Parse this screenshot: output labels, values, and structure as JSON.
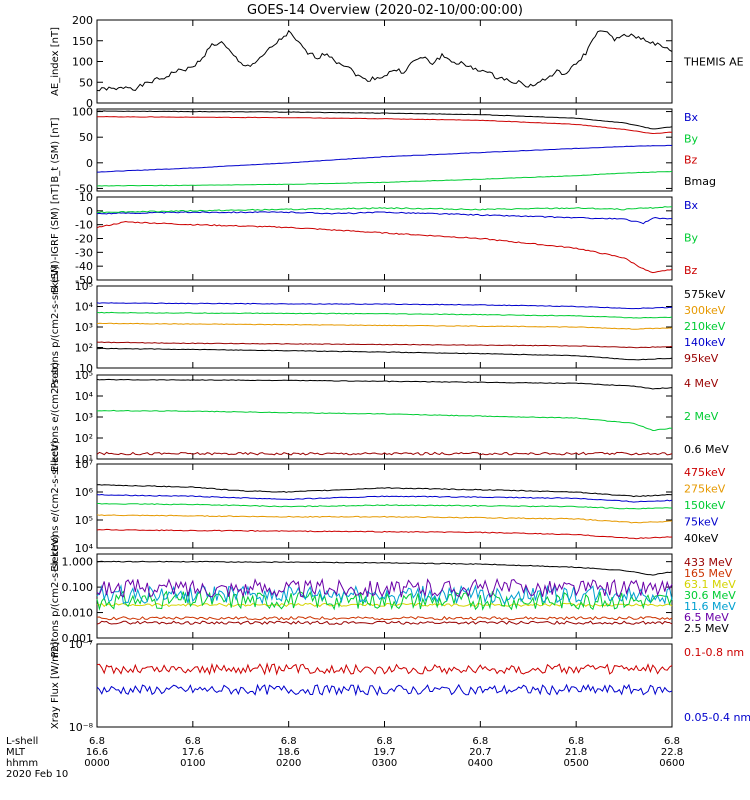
{
  "title": "GOES-14 Overview (2020-02-10/00:00:00)",
  "footer": {
    "row_labels": [
      "L-shell",
      "MLT",
      "hhmm",
      "2020 Feb 10"
    ],
    "lshell": [
      "6.8",
      "6.8",
      "6.8",
      "6.8",
      "6.8",
      "6.8",
      "6.8"
    ],
    "mlt": [
      "16.6",
      "17.6",
      "18.6",
      "19.7",
      "20.7",
      "21.8",
      "22.8"
    ],
    "hhmm": [
      "0000",
      "0100",
      "0200",
      "0300",
      "0400",
      "0500",
      "0600"
    ]
  },
  "colors": {
    "black": "#000000",
    "red": "#cc0000",
    "green": "#00cc33",
    "blue": "#0000cc",
    "orange": "#e69900",
    "cyan": "#00a0d0",
    "purple": "#6a00a8",
    "yellow": "#d4d400",
    "darkred": "#990000"
  },
  "chart_data": [
    {
      "type": "line",
      "id": "ae",
      "ylabel": "AE_index [nT]",
      "ylim": [
        0,
        200
      ],
      "yticks": [
        "0",
        "50",
        "100",
        "150",
        "200"
      ],
      "ytick_values": [
        0,
        50,
        100,
        150,
        200
      ],
      "xlim": [
        0,
        6
      ],
      "series": [
        {
          "name": "THEMIS AE",
          "color": "#000000",
          "x": [
            0,
            0.1,
            0.2,
            0.3,
            0.4,
            0.5,
            0.6,
            0.7,
            0.8,
            0.9,
            1.0,
            1.1,
            1.2,
            1.3,
            1.4,
            1.5,
            1.6,
            1.7,
            1.8,
            1.9,
            2.0,
            2.1,
            2.2,
            2.3,
            2.4,
            2.5,
            2.6,
            2.7,
            2.8,
            2.9,
            3.0,
            3.1,
            3.2,
            3.3,
            3.4,
            3.5,
            3.6,
            3.7,
            3.8,
            3.9,
            4.0,
            4.1,
            4.2,
            4.3,
            4.4,
            4.5,
            4.6,
            4.7,
            4.8,
            4.9,
            5.0,
            5.1,
            5.2,
            5.3,
            5.4,
            5.5,
            5.6,
            5.7,
            5.8,
            5.9,
            6.0
          ],
          "y": [
            30,
            35,
            32,
            40,
            35,
            45,
            55,
            60,
            75,
            80,
            85,
            110,
            140,
            145,
            120,
            95,
            90,
            105,
            130,
            150,
            170,
            145,
            120,
            110,
            120,
            100,
            90,
            70,
            55,
            60,
            65,
            80,
            75,
            100,
            110,
            95,
            115,
            100,
            95,
            85,
            80,
            70,
            60,
            55,
            50,
            40,
            48,
            60,
            75,
            70,
            95,
            120,
            165,
            175,
            150,
            165,
            160,
            155,
            145,
            135,
            125
          ]
        }
      ],
      "legend": [
        "THEMIS AE"
      ]
    },
    {
      "type": "line",
      "id": "bsm",
      "ylabel": "B_t (SM) [nT]",
      "ylim": [
        -55,
        105
      ],
      "yticks": [
        "-50",
        "0",
        "50",
        "100"
      ],
      "ytick_values": [
        -50,
        0,
        50,
        100
      ],
      "xlim": [
        0,
        6
      ],
      "series": [
        {
          "name": "Bx",
          "color": "#0000cc",
          "x": [
            0,
            1,
            2,
            3,
            4,
            5,
            5.5,
            6
          ],
          "y": [
            -18,
            -10,
            0,
            12,
            20,
            28,
            32,
            34
          ]
        },
        {
          "name": "By",
          "color": "#00cc33",
          "x": [
            0,
            1,
            2,
            3,
            4,
            5,
            5.5,
            6
          ],
          "y": [
            -45,
            -44,
            -42,
            -38,
            -32,
            -25,
            -20,
            -17
          ]
        },
        {
          "name": "Bz",
          "color": "#cc0000",
          "x": [
            0,
            1,
            2,
            3,
            4,
            5,
            5.5,
            5.8,
            6
          ],
          "y": [
            90,
            89,
            88,
            86,
            83,
            75,
            65,
            57,
            60
          ]
        },
        {
          "name": "Bmag",
          "color": "#000000",
          "x": [
            0,
            1,
            2,
            3,
            4,
            5,
            5.5,
            5.8,
            6
          ],
          "y": [
            101,
            100,
            99,
            97,
            94,
            87,
            78,
            66,
            70
          ]
        }
      ],
      "legend": [
        "Bx",
        "By",
        "Bz",
        "Bmag"
      ]
    },
    {
      "type": "line",
      "id": "bigrf",
      "ylabel": "B (SM)-IGRF (SM) [nT]",
      "ylim": [
        -50,
        10
      ],
      "yticks": [
        "10",
        "0",
        "-10",
        "-20",
        "-30",
        "-40",
        "-50"
      ],
      "ytick_values": [
        10,
        0,
        -10,
        -20,
        -30,
        -40,
        -50
      ],
      "xlim": [
        0,
        6
      ],
      "series": [
        {
          "name": "Bx",
          "color": "#0000cc",
          "x": [
            0,
            1,
            2,
            2.5,
            3,
            3.5,
            4,
            4.5,
            5,
            5.5,
            5.7,
            5.8,
            6
          ],
          "y": [
            -2,
            -1,
            -1,
            -2,
            -1,
            -2,
            -3,
            -4,
            -5,
            -6,
            -9,
            -5,
            -6
          ]
        },
        {
          "name": "By",
          "color": "#00cc33",
          "x": [
            0,
            1,
            2,
            3,
            4,
            5,
            5.5,
            6
          ],
          "y": [
            -1,
            0,
            1,
            2,
            1,
            2,
            1,
            3
          ]
        },
        {
          "name": "Bz",
          "color": "#cc0000",
          "x": [
            0,
            0.3,
            1,
            2,
            3,
            4,
            5,
            5.5,
            5.7,
            5.8,
            6
          ],
          "y": [
            -12,
            -8,
            -10,
            -12,
            -16,
            -20,
            -27,
            -34,
            -42,
            -45,
            -42
          ]
        }
      ],
      "legend": [
        "Bx",
        "By",
        "Bz"
      ]
    },
    {
      "type": "line",
      "id": "protons",
      "ylabel": "Protons p/(cm2-s-sr-keV)",
      "ylog": true,
      "ylim": [
        10,
        100000
      ],
      "yticks": [
        "10",
        "10²",
        "10³",
        "10⁴",
        "10⁵"
      ],
      "ytick_values": [
        10,
        100,
        1000,
        10000,
        100000
      ],
      "xlim": [
        0,
        6
      ],
      "series": [
        {
          "name": "575keV",
          "color": "#000000",
          "x": [
            0,
            1,
            2,
            3,
            4,
            5,
            5.6,
            6
          ],
          "y": [
            90,
            80,
            70,
            60,
            50,
            40,
            25,
            30
          ]
        },
        {
          "name": "300keV",
          "color": "#e69900",
          "x": [
            0,
            1,
            2,
            3,
            4,
            5,
            5.6,
            6
          ],
          "y": [
            1500,
            1400,
            1300,
            1200,
            1100,
            1000,
            800,
            900
          ]
        },
        {
          "name": "210keV",
          "color": "#00cc33",
          "x": [
            0,
            1,
            2,
            3,
            4,
            5,
            5.6,
            6
          ],
          "y": [
            5000,
            4800,
            4600,
            4400,
            4000,
            3500,
            2800,
            3000
          ]
        },
        {
          "name": "140keV",
          "color": "#0000cc",
          "x": [
            0,
            1,
            2,
            3,
            4,
            5,
            5.6,
            6
          ],
          "y": [
            15000,
            14000,
            13500,
            13000,
            12000,
            10000,
            8000,
            9000
          ]
        },
        {
          "name": "95keV",
          "color": "#990000",
          "x": [
            0,
            1,
            2,
            3,
            4,
            5,
            5.6,
            6
          ],
          "y": [
            180,
            160,
            150,
            140,
            130,
            120,
            100,
            110
          ]
        }
      ],
      "legend": [
        "575keV",
        "300keV",
        "210keV",
        "140keV",
        "95keV"
      ]
    },
    {
      "type": "line",
      "id": "electrons1",
      "ylabel": "Electrons e/(cm2-s-sr)",
      "ylog": true,
      "ylim": [
        10,
        100000
      ],
      "yticks": [
        "10¹",
        "10²",
        "10³",
        "10⁴",
        "10⁵"
      ],
      "ytick_values": [
        10,
        100,
        1000,
        10000,
        100000
      ],
      "xlim": [
        0,
        6
      ],
      "series": [
        {
          "name": "4 MeV",
          "color": "#990000",
          "x": [
            0,
            6
          ],
          "y": [
            18,
            18
          ]
        },
        {
          "name": "2 MeV",
          "color": "#00cc33",
          "x": [
            0,
            1,
            2,
            3,
            4,
            5,
            5.6,
            5.8,
            6
          ],
          "y": [
            2000,
            1900,
            1600,
            1400,
            1100,
            900,
            500,
            230,
            300
          ]
        },
        {
          "name": "0.6 MeV",
          "color": "#000000",
          "x": [
            0,
            1,
            2,
            3,
            4,
            5,
            5.6,
            5.8,
            6
          ],
          "y": [
            60000,
            58000,
            55000,
            50000,
            45000,
            40000,
            30000,
            22000,
            25000
          ]
        }
      ],
      "legend": [
        "4 MeV",
        "2 MeV",
        "0.6 MeV"
      ]
    },
    {
      "type": "line",
      "id": "electrons2",
      "ylabel": "Electrons e/(cm2-s-sr-keV)",
      "ylog": true,
      "ylim": [
        10000,
        10000000
      ],
      "yticks": [
        "10⁴",
        "10⁵",
        "10⁶",
        "10⁷"
      ],
      "ytick_values": [
        10000,
        100000,
        1000000,
        10000000
      ],
      "xlim": [
        0,
        6
      ],
      "series": [
        {
          "name": "475keV",
          "color": "#cc0000",
          "x": [
            0,
            1,
            2,
            3,
            4,
            5,
            5.6,
            6
          ],
          "y": [
            45000,
            42000,
            40000,
            38000,
            36000,
            30000,
            22000,
            25000
          ]
        },
        {
          "name": "275keV",
          "color": "#e69900",
          "x": [
            0,
            1,
            2,
            3,
            4,
            5,
            5.6,
            6
          ],
          "y": [
            150000,
            140000,
            130000,
            130000,
            120000,
            110000,
            80000,
            90000
          ]
        },
        {
          "name": "150keV",
          "color": "#00cc33",
          "x": [
            0,
            1,
            2,
            3,
            4,
            5,
            5.6,
            6
          ],
          "y": [
            380000,
            360000,
            300000,
            340000,
            320000,
            300000,
            250000,
            270000
          ]
        },
        {
          "name": "75keV",
          "color": "#0000cc",
          "x": [
            0,
            1,
            2,
            3,
            4,
            5,
            5.6,
            6
          ],
          "y": [
            800000,
            700000,
            550000,
            700000,
            650000,
            600000,
            450000,
            500000
          ]
        },
        {
          "name": "40keV",
          "color": "#000000",
          "x": [
            0,
            1,
            1.5,
            2,
            3,
            4,
            5,
            5.6,
            6
          ],
          "y": [
            1800000,
            1500000,
            1100000,
            1000000,
            1400000,
            1200000,
            1000000,
            700000,
            800000
          ]
        }
      ],
      "legend": [
        "475keV",
        "275keV",
        "150keV",
        "75keV",
        "40keV"
      ]
    },
    {
      "type": "line",
      "id": "protons2",
      "ylabel": "Protons p/(cm2-s-sr-keV)",
      "ylog": true,
      "ylim": [
        0.001,
        2
      ],
      "yticks": [
        "0.001",
        "0.010",
        "0.100",
        "1.000"
      ],
      "ytick_values": [
        0.001,
        0.01,
        0.1,
        1
      ],
      "xlim": [
        0,
        6
      ],
      "series": [
        {
          "name": "433 MeV",
          "color": "#990000",
          "x": [
            0,
            6
          ],
          "y": [
            0.004,
            0.004
          ]
        },
        {
          "name": "165 MeV",
          "color": "#cc3300",
          "x": [
            0,
            6
          ],
          "y": [
            0.006,
            0.006
          ]
        },
        {
          "name": "63.1 MeV",
          "color": "#d4d400",
          "x": [
            0,
            6
          ],
          "y": [
            0.02,
            0.02
          ]
        },
        {
          "name": "30.6 MeV",
          "color": "#00cc33",
          "x": [
            0,
            6
          ],
          "y": [
            0.03,
            0.03
          ]
        },
        {
          "name": "11.6 MeV",
          "color": "#00a0d0",
          "x": [
            0,
            6
          ],
          "y": [
            0.05,
            0.05
          ]
        },
        {
          "name": "6.5 MeV",
          "color": "#6a00a8",
          "x": [
            0,
            6
          ],
          "y": [
            0.09,
            0.09
          ]
        },
        {
          "name": "2.5 MeV",
          "color": "#000000",
          "x": [
            0,
            1,
            2,
            3,
            4,
            5,
            5.5,
            5.8,
            6
          ],
          "y": [
            1.0,
            1.0,
            0.95,
            0.9,
            0.8,
            0.6,
            0.45,
            0.3,
            0.4
          ]
        }
      ],
      "legend": [
        "433 MeV",
        "165 MeV",
        "63.1 MeV",
        "30.6 MeV",
        "11.6 MeV",
        "6.5 MeV",
        "2.5 MeV"
      ]
    },
    {
      "type": "line",
      "id": "xray",
      "ylabel": "Xray Flux [W/m2]",
      "ylog": true,
      "ylim": [
        1e-08,
        1e-07
      ],
      "yticks": [
        "10⁻⁸",
        "10⁻⁷"
      ],
      "ytick_values": [
        1e-08,
        1e-07
      ],
      "xlim": [
        0,
        6
      ],
      "series": [
        {
          "name": "0.1-0.8 nm",
          "color": "#cc0000",
          "x": [
            0,
            6
          ],
          "y": [
            5e-08,
            5e-08
          ]
        },
        {
          "name": "0.05-0.4 nm",
          "color": "#0000cc",
          "x": [
            0,
            6
          ],
          "y": [
            2.8e-08,
            2.8e-08
          ]
        }
      ],
      "legend": [
        "0.1-0.8 nm",
        "0.05-0.4 nm"
      ]
    }
  ]
}
